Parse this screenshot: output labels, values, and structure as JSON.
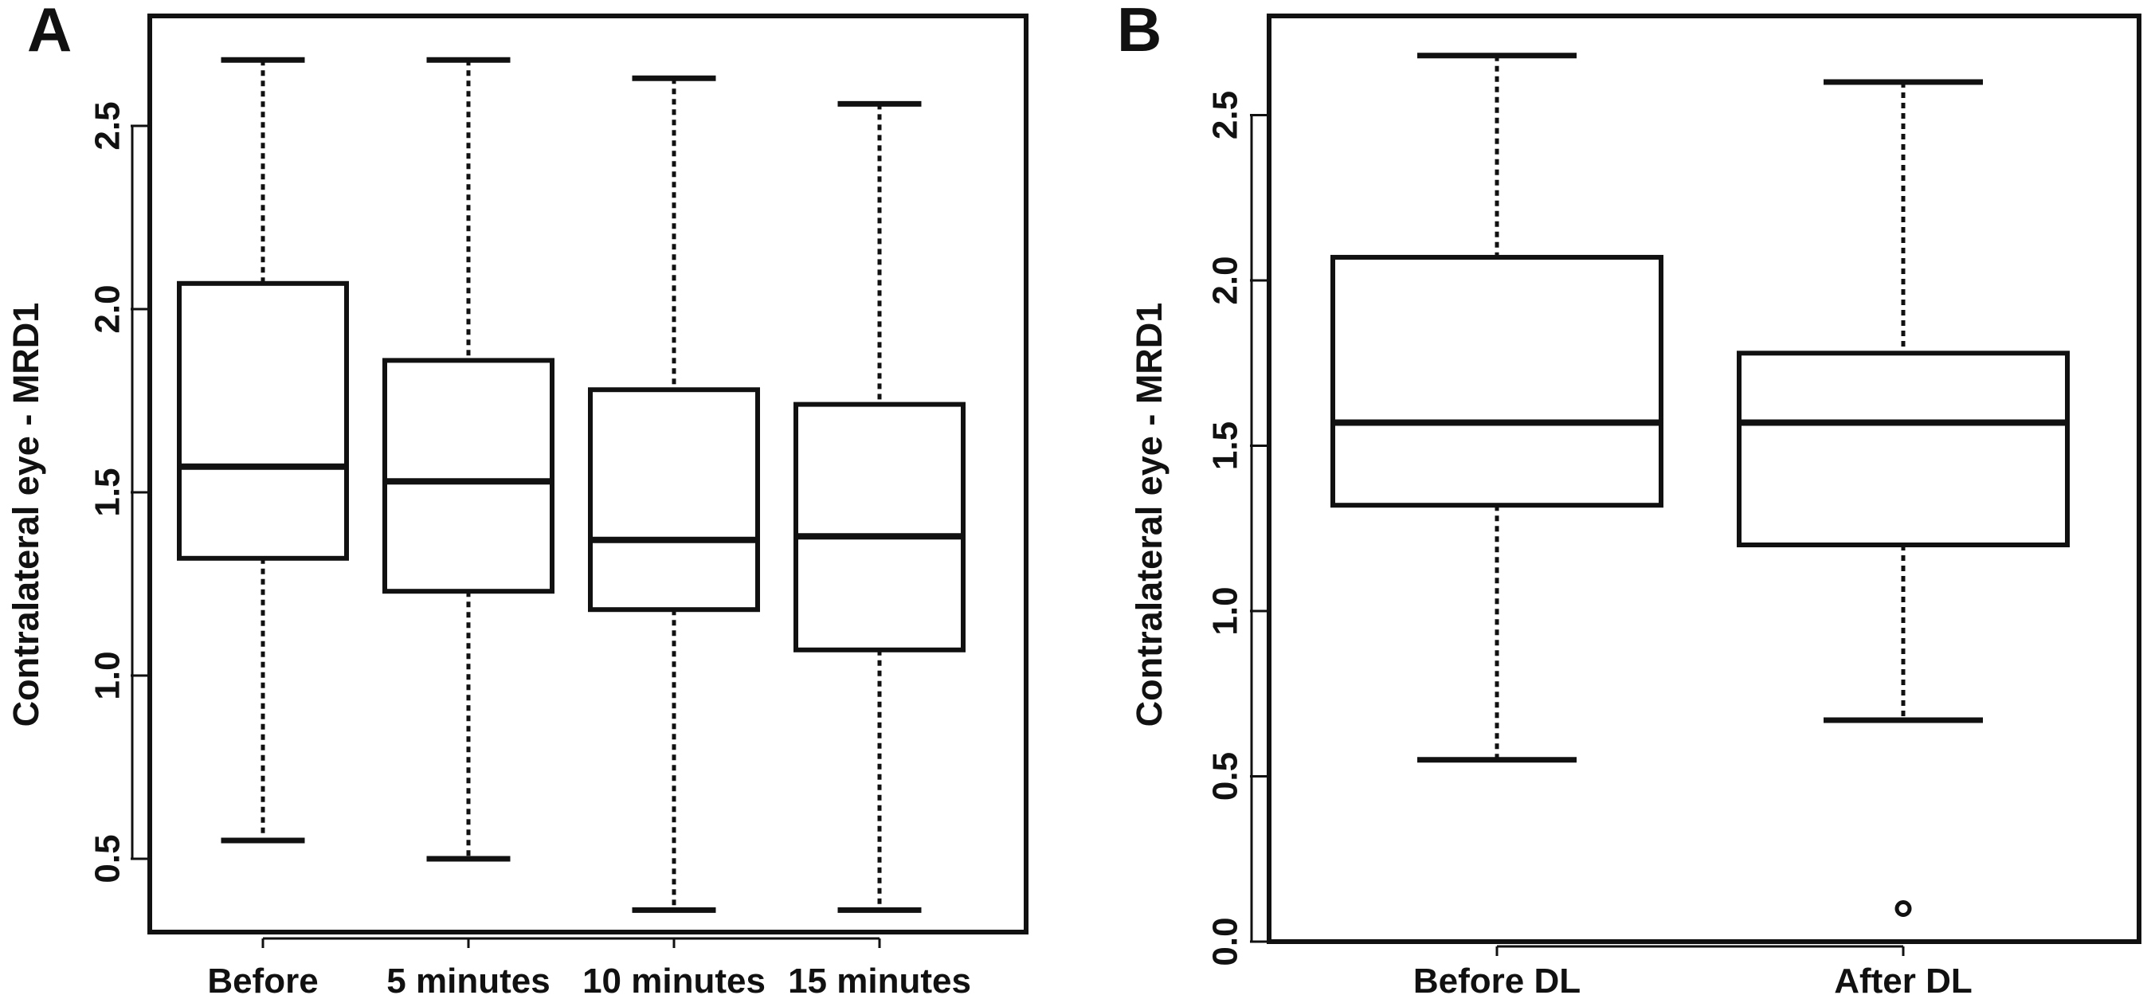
{
  "chart_data": [
    {
      "panel": "A",
      "type": "box",
      "title": "",
      "xlabel": "",
      "ylabel": "Contralateral eye - MRD1",
      "ylim": [
        0.3,
        2.8
      ],
      "y_ticks": [
        0.5,
        1.0,
        1.5,
        2.0,
        2.5
      ],
      "y_tick_labels": [
        "0.5",
        "1.0",
        "1.5",
        "2.0",
        "2.5"
      ],
      "categories": [
        "Before",
        "5 minutes",
        "10 minutes",
        "15 minutes"
      ],
      "boxes": [
        {
          "category": "Before",
          "whisker_low": 0.55,
          "q1": 1.32,
          "median": 1.57,
          "q3": 2.07,
          "whisker_high": 2.68,
          "outliers": []
        },
        {
          "category": "5 minutes",
          "whisker_low": 0.5,
          "q1": 1.23,
          "median": 1.53,
          "q3": 1.86,
          "whisker_high": 2.68,
          "outliers": []
        },
        {
          "category": "10 minutes",
          "whisker_low": 0.36,
          "q1": 1.18,
          "median": 1.37,
          "q3": 1.78,
          "whisker_high": 2.63,
          "outliers": []
        },
        {
          "category": "15 minutes",
          "whisker_low": 0.36,
          "q1": 1.07,
          "median": 1.38,
          "q3": 1.74,
          "whisker_high": 2.56,
          "outliers": []
        }
      ],
      "grid": false,
      "legend": "none"
    },
    {
      "panel": "B",
      "type": "box",
      "title": "",
      "xlabel": "",
      "ylabel": "Contralateral eye - MRD1",
      "ylim": [
        0.0,
        2.8
      ],
      "y_ticks": [
        0.0,
        0.5,
        1.0,
        1.5,
        2.0,
        2.5
      ],
      "y_tick_labels": [
        "0.0",
        "0.5",
        "1.0",
        "1.5",
        "2.0",
        "2.5"
      ],
      "categories": [
        "Before DL",
        "After DL"
      ],
      "boxes": [
        {
          "category": "Before DL",
          "whisker_low": 0.55,
          "q1": 1.32,
          "median": 1.57,
          "q3": 2.07,
          "whisker_high": 2.68,
          "outliers": []
        },
        {
          "category": "After DL",
          "whisker_low": 0.67,
          "q1": 1.2,
          "median": 1.57,
          "q3": 1.78,
          "whisker_high": 2.6,
          "outliers": [
            0.1
          ]
        }
      ],
      "grid": false,
      "legend": "none"
    }
  ]
}
